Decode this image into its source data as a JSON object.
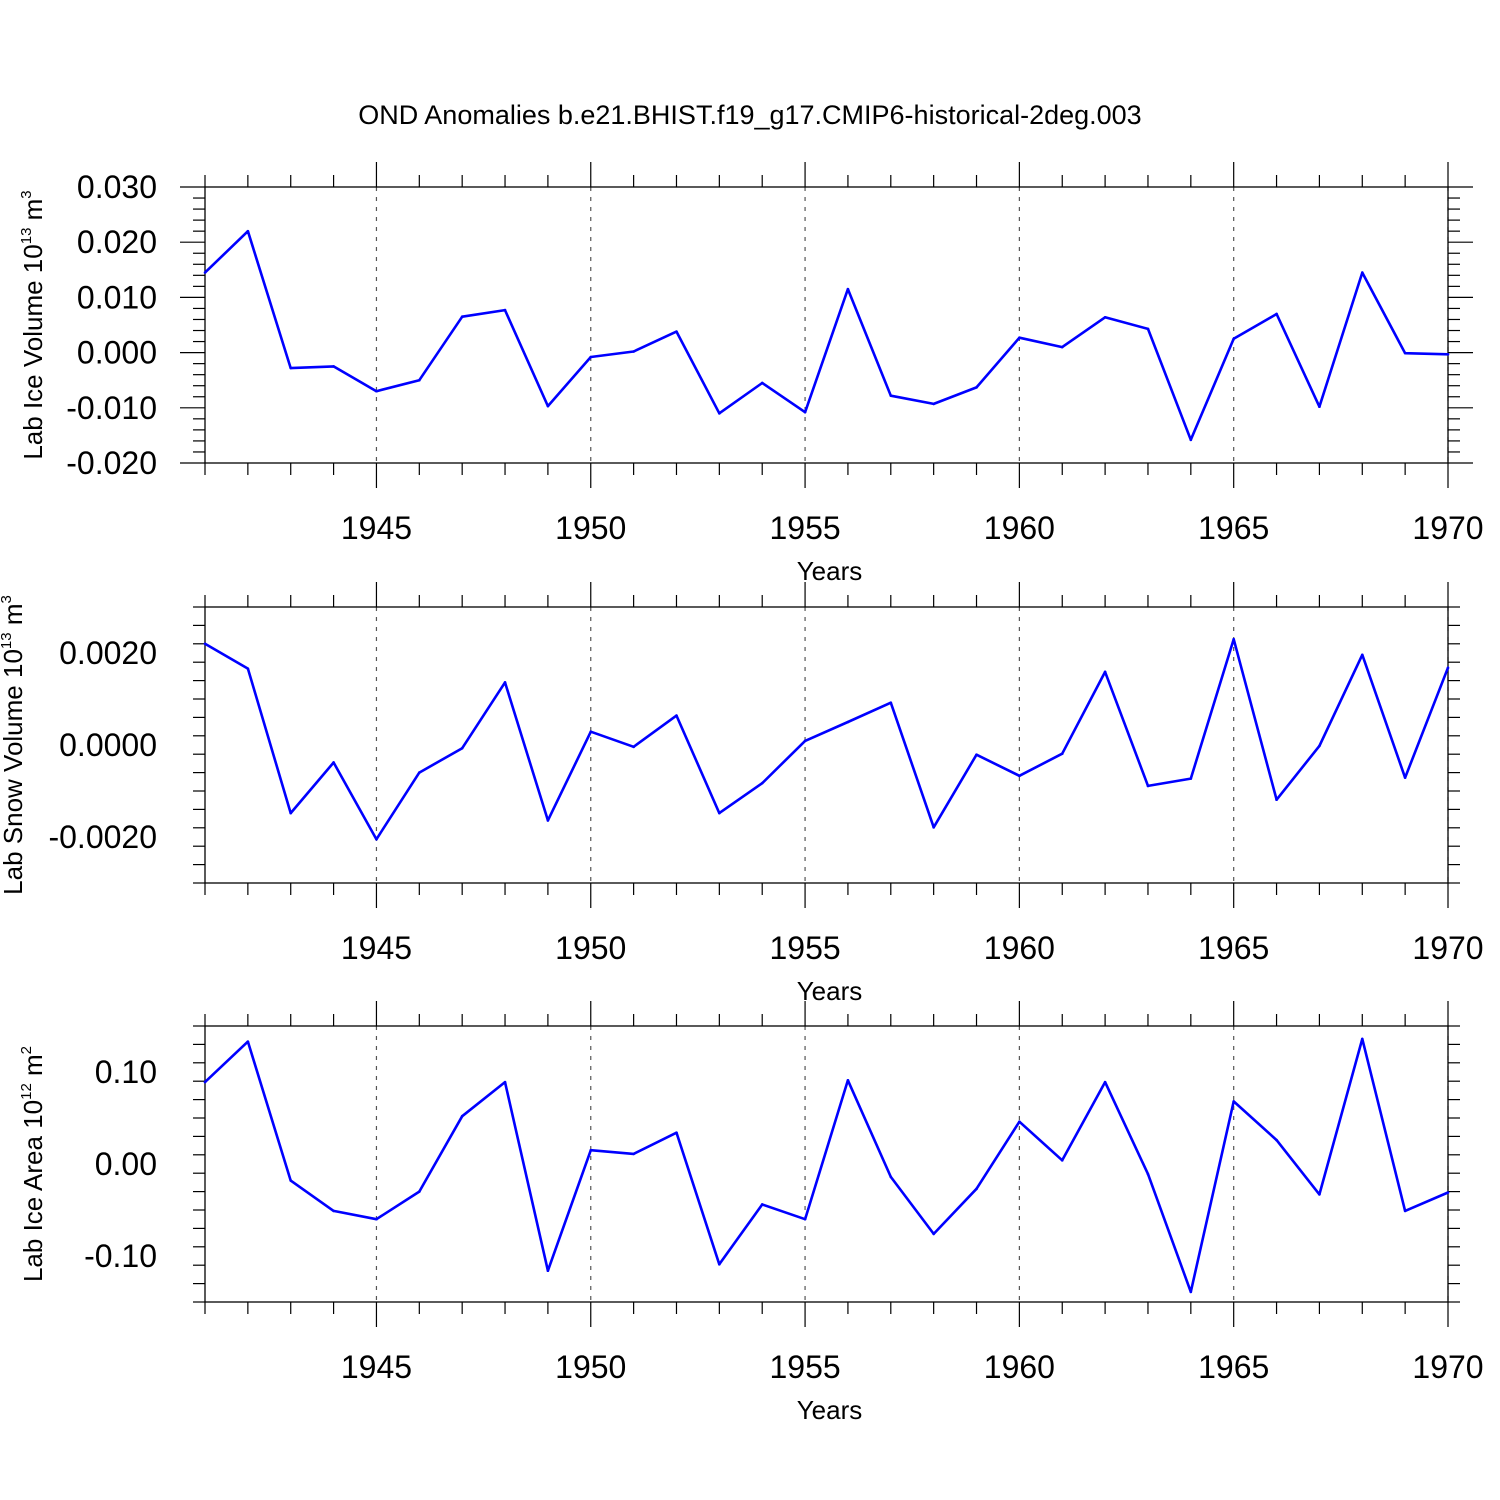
{
  "title": "OND Anomalies b.e21.BHIST.f19_g17.CMIP6-historical-2deg.003",
  "colors": {
    "line": "#0000ff",
    "grid": "#555555",
    "axis": "#000000"
  },
  "chart_data": [
    {
      "type": "line",
      "ylabel": {
        "main": "Lab Ice Volume 10",
        "sup1": "13",
        "mid": " m",
        "sup2": "3"
      },
      "xlabel": "Years",
      "xlim": [
        1941,
        1970
      ],
      "ylim": [
        -0.02,
        0.03
      ],
      "yticks": [
        -0.02,
        -0.01,
        0.0,
        0.01,
        0.02,
        0.03
      ],
      "ytick_labels": [
        "-0.020",
        "-0.010",
        "0.000",
        "0.010",
        "0.020",
        "0.030"
      ],
      "xticks": [
        1945,
        1950,
        1955,
        1960,
        1965,
        1970
      ],
      "xtick_labels": [
        "1945",
        "1950",
        "1955",
        "1960",
        "1965",
        "1970"
      ],
      "grid": "vertical dashed at major x ticks",
      "x": [
        1941,
        1942,
        1943,
        1944,
        1945,
        1946,
        1947,
        1948,
        1949,
        1950,
        1951,
        1952,
        1953,
        1954,
        1955,
        1956,
        1957,
        1958,
        1959,
        1960,
        1961,
        1962,
        1963,
        1964,
        1965,
        1966,
        1967,
        1968,
        1969,
        1970
      ],
      "values": [
        0.0145,
        0.022,
        -0.0028,
        -0.0025,
        -0.007,
        -0.005,
        0.0065,
        0.0077,
        -0.0097,
        -0.0008,
        0.0002,
        0.0038,
        -0.011,
        -0.0055,
        -0.0108,
        0.0115,
        -0.0078,
        -0.0093,
        -0.0063,
        0.0027,
        0.001,
        0.0064,
        0.0043,
        -0.0158,
        0.0025,
        0.007,
        -0.0098,
        0.0145,
        -0.0001,
        -0.0003
      ]
    },
    {
      "type": "line",
      "ylabel": {
        "main": "Lab Snow Volume 10",
        "sup1": "13",
        "mid": " m",
        "sup2": "3"
      },
      "xlabel": "Years",
      "xlim": [
        1941,
        1970
      ],
      "ylim": [
        -0.003,
        0.003
      ],
      "yticks": [
        -0.002,
        0.0,
        0.002
      ],
      "ytick_labels": [
        "-0.0020",
        "0.0000",
        "0.0020"
      ],
      "xticks": [
        1945,
        1950,
        1955,
        1960,
        1965,
        1970
      ],
      "xtick_labels": [
        "1945",
        "1950",
        "1955",
        "1960",
        "1965",
        "1970"
      ],
      "grid": "vertical dashed at major x ticks",
      "x": [
        1941,
        1942,
        1943,
        1944,
        1945,
        1946,
        1947,
        1948,
        1949,
        1950,
        1951,
        1952,
        1953,
        1954,
        1955,
        1956,
        1957,
        1958,
        1959,
        1960,
        1961,
        1962,
        1963,
        1964,
        1965,
        1966,
        1967,
        1968,
        1969,
        1970
      ],
      "values": [
        0.0022,
        0.00166,
        -0.00148,
        -0.00038,
        -0.00205,
        -0.0006,
        -7e-05,
        0.00136,
        -0.00164,
        0.00029,
        -4e-05,
        0.00064,
        -0.00148,
        -0.00083,
        9e-05,
        0.0005,
        0.00092,
        -0.00179,
        -0.00021,
        -0.00067,
        -0.00019,
        0.00159,
        -0.00089,
        -0.00073,
        0.0023,
        -0.00119,
        -2e-05,
        0.00196,
        -0.00071,
        0.00168
      ]
    },
    {
      "type": "line",
      "ylabel": {
        "main": "Lab Ice Area 10",
        "sup1": "12",
        "mid": " m",
        "sup2": "2"
      },
      "xlabel": "Years",
      "xlim": [
        1941,
        1970
      ],
      "ylim": [
        -0.15,
        0.15
      ],
      "yticks": [
        -0.1,
        0.0,
        0.1
      ],
      "ytick_labels": [
        "-0.10",
        "0.00",
        "0.10"
      ],
      "xticks": [
        1945,
        1950,
        1955,
        1960,
        1965,
        1970
      ],
      "xtick_labels": [
        "1945",
        "1950",
        "1955",
        "1960",
        "1965",
        "1970"
      ],
      "grid": "vertical dashed at major x ticks",
      "x": [
        1941,
        1942,
        1943,
        1944,
        1945,
        1946,
        1947,
        1948,
        1949,
        1950,
        1951,
        1952,
        1953,
        1954,
        1955,
        1956,
        1957,
        1958,
        1959,
        1960,
        1961,
        1962,
        1963,
        1964,
        1965,
        1966,
        1967,
        1968,
        1969,
        1970
      ],
      "values": [
        0.089,
        0.133,
        -0.018,
        -0.051,
        -0.06,
        -0.03,
        0.052,
        0.089,
        -0.116,
        0.015,
        0.011,
        0.034,
        -0.109,
        -0.044,
        -0.06,
        0.091,
        -0.014,
        -0.076,
        -0.027,
        0.046,
        0.004,
        0.089,
        -0.011,
        -0.139,
        0.068,
        0.026,
        -0.033,
        0.136,
        -0.051,
        -0.031
      ]
    }
  ]
}
